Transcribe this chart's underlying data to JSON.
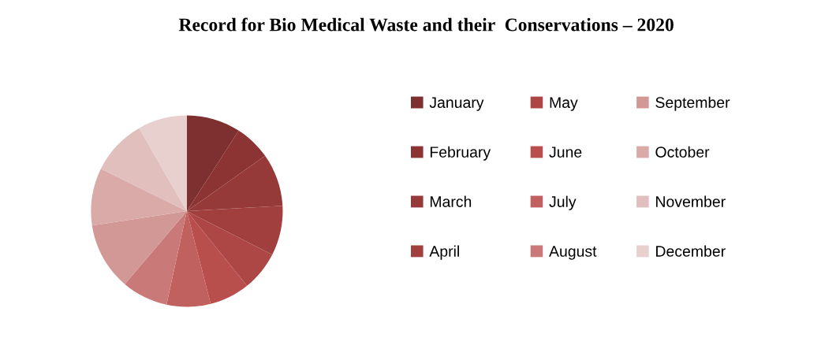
{
  "chart_data": {
    "type": "pie",
    "title": "Record for Bio Medical Waste and their  Conservations – 2020",
    "categories": [
      "January",
      "February",
      "March",
      "April",
      "May",
      "June",
      "July",
      "August",
      "September",
      "October",
      "November",
      "December"
    ],
    "values": [
      9.1,
      6.1,
      8.9,
      8.4,
      6.7,
      6.8,
      7.4,
      7.8,
      11.4,
      9.7,
      9.4,
      8.3
    ],
    "colors": [
      "#7e2f2f",
      "#8c3434",
      "#963a39",
      "#a13f3e",
      "#ac4745",
      "#b84f4c",
      "#c0615f",
      "#c97a78",
      "#d29896",
      "#d9aaa8",
      "#e0bfbd",
      "#e8d0cf"
    ],
    "legend": "right"
  }
}
